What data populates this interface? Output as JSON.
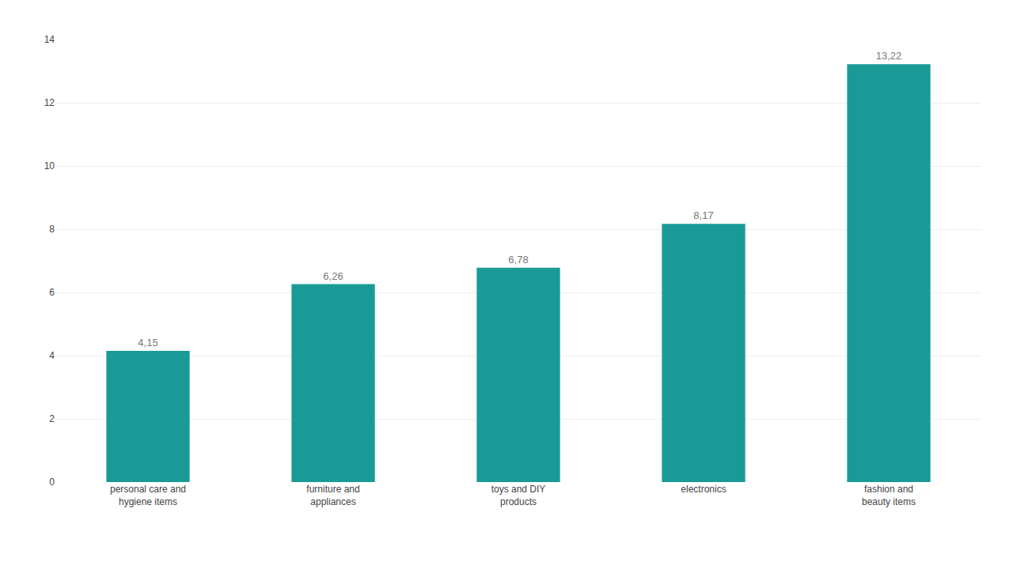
{
  "chart_data": {
    "type": "bar",
    "categories": [
      "personal care and\nhygiene items",
      "furniture and\nappliances",
      "toys and DIY\nproducts",
      "electronics",
      "fashion and\nbeauty items"
    ],
    "values": [
      4.15,
      6.26,
      6.78,
      8.17,
      13.22
    ],
    "value_labels": [
      "4,15",
      "6,26",
      "6,78",
      "8,17",
      "13,22"
    ],
    "data_labels": true,
    "color": "#1A9A96",
    "ylim": [
      0,
      14
    ],
    "yticks": [
      0,
      2,
      4,
      6,
      8,
      10,
      12,
      14
    ],
    "grid": true
  }
}
